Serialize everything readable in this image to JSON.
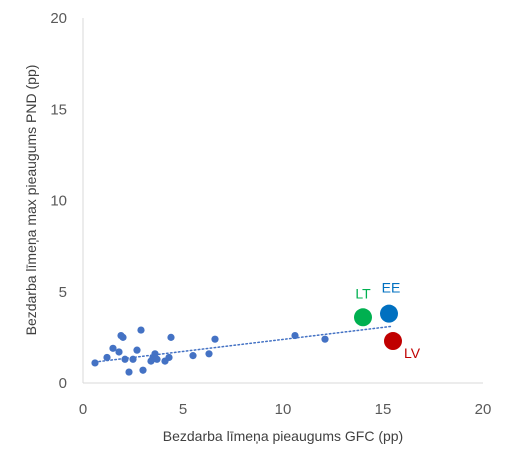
{
  "chart_data": {
    "type": "scatter",
    "title": "",
    "xlabel": "Bezdarba līmeņa pieaugums GFC (pp)",
    "ylabel": "Bezdarba līmeņa max pieaugums PND (pp)",
    "xlim": [
      0,
      20
    ],
    "ylim": [
      0,
      20
    ],
    "xticks": [
      "0",
      "5",
      "10",
      "15",
      "20"
    ],
    "yticks": [
      "0",
      "5",
      "10",
      "15",
      "20"
    ],
    "grid": false,
    "trendline": {
      "style": "dotted-linear",
      "color": "#4472C4",
      "from": {
        "x": 0.6,
        "y": 1.15
      },
      "to": {
        "x": 15.4,
        "y": 3.1
      }
    },
    "series": [
      {
        "color": "#4472C4",
        "points": [
          {
            "x": 0.6,
            "y": 1.1
          },
          {
            "x": 1.2,
            "y": 1.4
          },
          {
            "x": 1.5,
            "y": 1.9
          },
          {
            "x": 1.8,
            "y": 1.7
          },
          {
            "x": 1.9,
            "y": 2.6
          },
          {
            "x": 2.0,
            "y": 2.5
          },
          {
            "x": 2.1,
            "y": 1.3
          },
          {
            "x": 2.3,
            "y": 0.6
          },
          {
            "x": 2.5,
            "y": 1.3
          },
          {
            "x": 2.7,
            "y": 1.8
          },
          {
            "x": 2.9,
            "y": 2.9
          },
          {
            "x": 3.0,
            "y": 0.7
          },
          {
            "x": 3.4,
            "y": 1.2
          },
          {
            "x": 3.5,
            "y": 1.4
          },
          {
            "x": 3.6,
            "y": 1.6
          },
          {
            "x": 3.7,
            "y": 1.3
          },
          {
            "x": 4.1,
            "y": 1.2
          },
          {
            "x": 4.3,
            "y": 1.4
          },
          {
            "x": 4.4,
            "y": 2.5
          },
          {
            "x": 5.5,
            "y": 1.5
          },
          {
            "x": 6.3,
            "y": 1.6
          },
          {
            "x": 6.6,
            "y": 2.4
          },
          {
            "x": 10.6,
            "y": 2.6
          },
          {
            "x": 12.1,
            "y": 2.4
          }
        ]
      }
    ],
    "highlighted": [
      {
        "label": "LT",
        "x": 14.0,
        "y": 3.6,
        "color": "#00B050"
      },
      {
        "label": "EE",
        "x": 15.3,
        "y": 3.8,
        "color": "#0070C0"
      },
      {
        "label": "LV",
        "x": 15.5,
        "y": 2.3,
        "color": "#C00000"
      }
    ]
  }
}
